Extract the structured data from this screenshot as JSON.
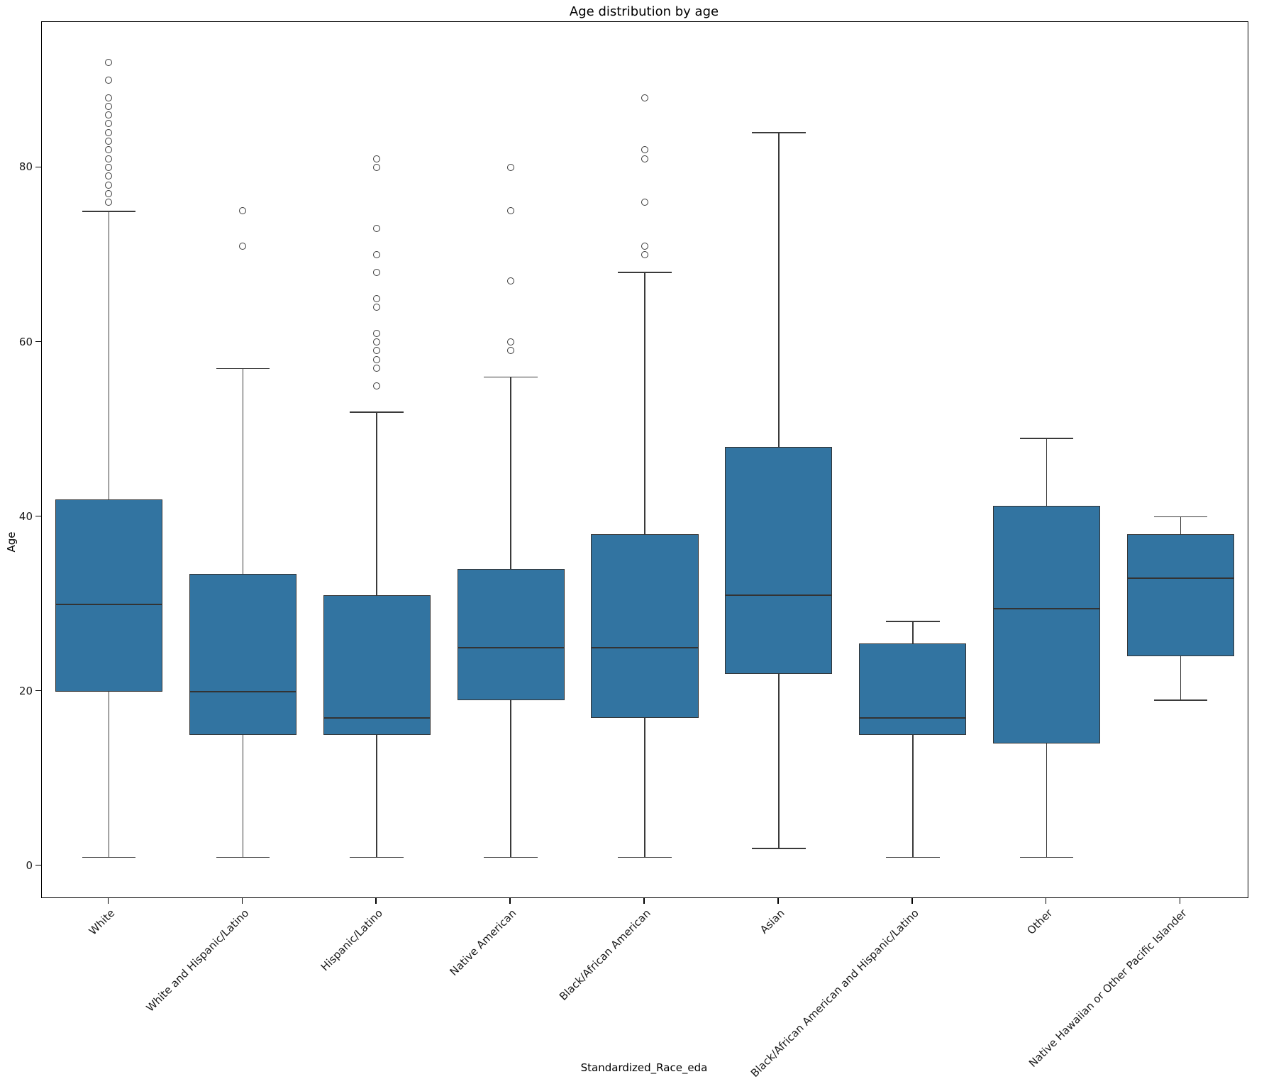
{
  "title": "Age distribution by age",
  "y_axis": {
    "label": "Age",
    "ticks": [
      0,
      20,
      40,
      60,
      80
    ],
    "min": -3.6,
    "max": 96.7
  },
  "x_axis": {
    "label": "Standardized_Race_eda"
  },
  "colors": {
    "box_fill": "#3274a1",
    "box_edge": "#333333",
    "whisker": "#3a3a3a",
    "spine": "#000000"
  },
  "chart_data": {
    "type": "boxplot",
    "title": "Age distribution by age",
    "xlabel": "Standardized_Race_eda",
    "ylabel": "Age",
    "ylim": [
      -3.6,
      96.7
    ],
    "grid": false,
    "legend": false,
    "categories": [
      "White",
      "White and Hispanic/Latino",
      "Hispanic/Latino",
      "Native American",
      "Black/African American",
      "Asian",
      "Black/African American and Hispanic/Latino",
      "Other",
      "Native Hawaiian or Other Pacific Islander"
    ],
    "series": [
      {
        "name": "White",
        "whisker_low": 1,
        "q1": 20,
        "median": 30,
        "q3": 42,
        "whisker_high": 75,
        "outliers": [
          76,
          77,
          78,
          79,
          80,
          81,
          82,
          83,
          84,
          85,
          86,
          87,
          88,
          90,
          92
        ]
      },
      {
        "name": "White and Hispanic/Latino",
        "whisker_low": 1,
        "q1": 15,
        "median": 20,
        "q3": 33.5,
        "whisker_high": 57,
        "outliers": [
          71,
          75
        ]
      },
      {
        "name": "Hispanic/Latino",
        "whisker_low": 1,
        "q1": 15,
        "median": 17,
        "q3": 31,
        "whisker_high": 52,
        "outliers": [
          55,
          57,
          58,
          59,
          60,
          61,
          64,
          65,
          68,
          70,
          73,
          80,
          81
        ]
      },
      {
        "name": "Native American",
        "whisker_low": 1,
        "q1": 19,
        "median": 25,
        "q3": 34,
        "whisker_high": 56,
        "outliers": [
          59,
          60,
          67,
          75,
          80
        ]
      },
      {
        "name": "Black/African American",
        "whisker_low": 1,
        "q1": 17,
        "median": 25,
        "q3": 38,
        "whisker_high": 68,
        "outliers": [
          70,
          71,
          76,
          81,
          82,
          88
        ]
      },
      {
        "name": "Asian",
        "whisker_low": 2,
        "q1": 22,
        "median": 31,
        "q3": 48,
        "whisker_high": 84,
        "outliers": []
      },
      {
        "name": "Black/African American and Hispanic/Latino",
        "whisker_low": 1,
        "q1": 15,
        "median": 17,
        "q3": 25.5,
        "whisker_high": 28,
        "outliers": []
      },
      {
        "name": "Other",
        "whisker_low": 1,
        "q1": 14,
        "median": 29.5,
        "q3": 41.3,
        "whisker_high": 49,
        "outliers": []
      },
      {
        "name": "Native Hawaiian or Other Pacific Islander",
        "whisker_low": 19,
        "q1": 24,
        "median": 33,
        "q3": 38,
        "whisker_high": 40,
        "outliers": []
      }
    ]
  }
}
